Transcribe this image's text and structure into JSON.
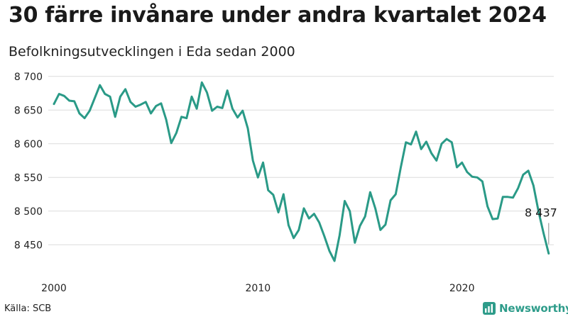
{
  "header": {
    "title": "30 färre invånare under andra kvartalet 2024",
    "subtitle": "Befolkningsutvecklingen i Eda sedan 2000"
  },
  "footer": {
    "source": "Källa: SCB",
    "brand": "Newsworthy"
  },
  "colors": {
    "line": "#2a9a87",
    "grid": "#dcdcdc",
    "brand": "#2e9c8a"
  },
  "chart_data": {
    "type": "line",
    "title": "30 färre invånare under andra kvartalet 2024",
    "subtitle": "Befolkningsutvecklingen i Eda sedan 2000",
    "xlabel": "",
    "ylabel": "",
    "xlim": [
      2000,
      2024.5
    ],
    "ylim": [
      8425,
      8705
    ],
    "grid": true,
    "legend": "none",
    "x_ticks": [
      {
        "value": 2000,
        "label": "2000"
      },
      {
        "value": 2010,
        "label": "2010"
      },
      {
        "value": 2020,
        "label": "2020"
      }
    ],
    "y_ticks": [
      {
        "value": 8450,
        "label": "8 450"
      },
      {
        "value": 8500,
        "label": "8 500"
      },
      {
        "value": 8550,
        "label": "8 550"
      },
      {
        "value": 8600,
        "label": "8 600"
      },
      {
        "value": 8650,
        "label": "8 650"
      },
      {
        "value": 8700,
        "label": "8 700"
      }
    ],
    "annotations": [
      {
        "text": "8 437",
        "x": 2024.25,
        "y": 8437
      }
    ],
    "series": [
      {
        "name": "",
        "x": [
          2000.0,
          2000.25,
          2000.5,
          2000.75,
          2001.0,
          2001.25,
          2001.5,
          2001.75,
          2002.0,
          2002.25,
          2002.5,
          2002.75,
          2003.0,
          2003.25,
          2003.5,
          2003.75,
          2004.0,
          2004.25,
          2004.5,
          2004.75,
          2005.0,
          2005.25,
          2005.5,
          2005.75,
          2006.0,
          2006.25,
          2006.5,
          2006.75,
          2007.0,
          2007.25,
          2007.5,
          2007.75,
          2008.0,
          2008.25,
          2008.5,
          2008.75,
          2009.0,
          2009.25,
          2009.5,
          2009.75,
          2010.0,
          2010.25,
          2010.5,
          2010.75,
          2011.0,
          2011.25,
          2011.5,
          2011.75,
          2012.0,
          2012.25,
          2012.5,
          2012.75,
          2013.0,
          2013.25,
          2013.5,
          2013.75,
          2014.0,
          2014.25,
          2014.5,
          2014.75,
          2015.0,
          2015.25,
          2015.5,
          2015.75,
          2016.0,
          2016.25,
          2016.5,
          2016.75,
          2017.0,
          2017.25,
          2017.5,
          2017.75,
          2018.0,
          2018.25,
          2018.5,
          2018.75,
          2019.0,
          2019.25,
          2019.5,
          2019.75,
          2020.0,
          2020.25,
          2020.5,
          2020.75,
          2021.0,
          2021.25,
          2021.5,
          2021.75,
          2022.0,
          2022.25,
          2022.5,
          2022.75,
          2023.0,
          2023.25,
          2023.5,
          2023.75,
          2024.0,
          2024.25
        ],
        "y": [
          8659,
          8674,
          8671,
          8664,
          8663,
          8645,
          8638,
          8649,
          8668,
          8687,
          8674,
          8670,
          8640,
          8670,
          8681,
          8662,
          8655,
          8658,
          8662,
          8645,
          8656,
          8660,
          8636,
          8601,
          8616,
          8640,
          8638,
          8670,
          8652,
          8691,
          8676,
          8649,
          8655,
          8653,
          8679,
          8652,
          8639,
          8649,
          8623,
          8575,
          8550,
          8572,
          8531,
          8524,
          8498,
          8525,
          8479,
          8460,
          8472,
          8504,
          8489,
          8496,
          8483,
          8463,
          8441,
          8426,
          8464,
          8515,
          8500,
          8453,
          8478,
          8492,
          8528,
          8504,
          8472,
          8480,
          8516,
          8525,
          8565,
          8602,
          8599,
          8618,
          8592,
          8603,
          8586,
          8575,
          8600,
          8607,
          8602,
          8565,
          8572,
          8558,
          8551,
          8550,
          8544,
          8507,
          8488,
          8489,
          8521,
          8521,
          8520,
          8534,
          8554,
          8560,
          8538,
          8500,
          8467,
          8437
        ]
      }
    ]
  }
}
